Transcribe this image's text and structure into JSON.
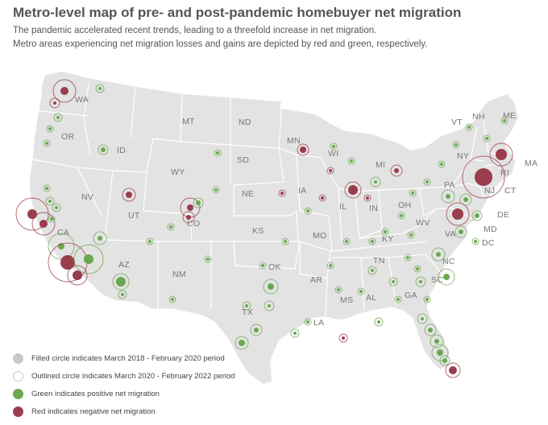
{
  "title": "Metro-level map of pre- and post-pandemic homebuyer net migration",
  "subtitle": [
    "The pandemic accelerated recent trends, leading to a threefold increase in net migration.",
    "Metro areas experiencing net migration losses and gains are depicted by red and green, respectively."
  ],
  "colors": {
    "land": "#e3e3e3",
    "border": "#ffffff",
    "gain": "#6aa84f",
    "loss": "#9a3d4d",
    "label": "#777777",
    "neutral": "#c8c8c8"
  },
  "legend": [
    {
      "text": "Filled circle indicates March 2018 - February 2020 period",
      "kind": "filled-gray"
    },
    {
      "text": "Outlined circle indicates March 2020 - February 2022 period",
      "kind": "outline-gray"
    },
    {
      "text": "Green indicates positive net migration",
      "kind": "green"
    },
    {
      "text": "Red indicates negative net migration",
      "kind": "red"
    }
  ],
  "state_labels": [
    "WA",
    "OR",
    "ID",
    "MT",
    "ND",
    "SD",
    "WY",
    "NV",
    "UT",
    "CO",
    "CA",
    "AZ",
    "NM",
    "NE",
    "KS",
    "OK",
    "TX",
    "MN",
    "WI",
    "IA",
    "MO",
    "AR",
    "LA",
    "MS",
    "AL",
    "IL",
    "IN",
    "MI",
    "OH",
    "KY",
    "TN",
    "GA",
    "WV",
    "VA",
    "NC",
    "SC",
    "PA",
    "NY",
    "VT",
    "NH",
    "ME",
    "MA",
    "RI",
    "CT",
    "NJ",
    "DE",
    "MD",
    "DC"
  ]
}
